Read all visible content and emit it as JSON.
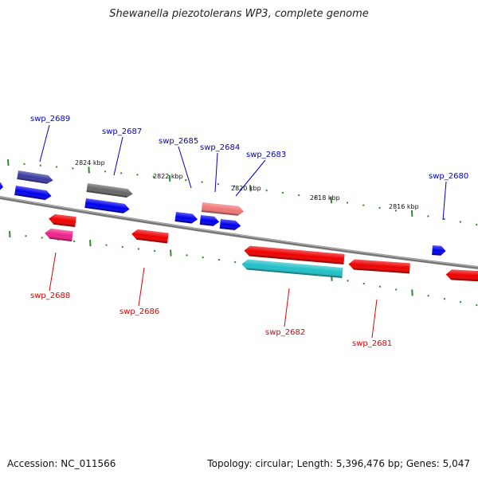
{
  "title": "Shewanella piezotolerans WP3, complete genome",
  "footer": {
    "accession": "Accession: NC_011566",
    "info": "Topology: circular; Length: 5,396,476 bp; Genes: 5,047"
  },
  "colors": {
    "plus_label": "#0000cc",
    "minus_label": "#dd0000",
    "backbone": "#888888",
    "tick": "#338833"
  },
  "scale_labels": [
    "2824 kbp",
    "2822 kbp",
    "2820 kbp",
    "2818 kbp",
    "2816 kbp"
  ],
  "genes_upper": [
    {
      "label": "swp_2689",
      "color": "#3a3aa0"
    },
    {
      "label": "swp_2687",
      "color": "#666666"
    },
    {
      "label": "swp_2685",
      "color": "#0000ee"
    },
    {
      "label": "swp_2684",
      "color": "#ee7777"
    },
    {
      "label": "swp_2683",
      "color": "#ee7777"
    },
    {
      "label": "swp_2680",
      "color": "#0000ee"
    }
  ],
  "genes_lower": [
    {
      "label": "swp_2688",
      "color": "#ee2288"
    },
    {
      "label": "swp_2686",
      "color": "#ee0000"
    },
    {
      "label": "swp_2682",
      "color": "#20c0c8"
    },
    {
      "label": "swp_2681",
      "color": "#ee0000"
    }
  ]
}
